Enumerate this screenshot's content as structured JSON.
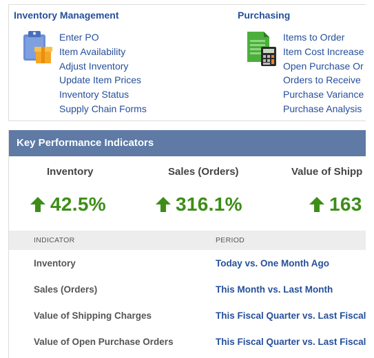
{
  "inventory_management": {
    "title": "Inventory Management",
    "icon": "clipboard-box-icon",
    "links": [
      "Enter PO",
      "Item Availability",
      "Adjust Inventory",
      "Update Item Prices",
      "Inventory Status",
      "Supply Chain Forms"
    ]
  },
  "purchasing": {
    "title": "Purchasing",
    "icon": "spreadsheet-calculator-icon",
    "links": [
      "Items to Order",
      "Item Cost Increase",
      "Open Purchase Or",
      "Orders to Receive",
      "Purchase Variance",
      "Purchase Analysis"
    ]
  },
  "kpi": {
    "header": "Key Performance Indicators",
    "cards": [
      {
        "title": "Inventory",
        "value": "42.5%",
        "trend": "up"
      },
      {
        "title": "Sales (Orders)",
        "value": "316.1%",
        "trend": "up"
      },
      {
        "title": "Value of Shipp",
        "value": "163",
        "trend": "up"
      }
    ],
    "table": {
      "col_indicator": "INDICATOR",
      "col_period": "PERIOD",
      "rows": [
        {
          "indicator": "Inventory",
          "period": "Today vs. One Month Ago"
        },
        {
          "indicator": "Sales (Orders)",
          "period": "This Month vs. Last Month"
        },
        {
          "indicator": "Value of Shipping Charges",
          "period": "This Fiscal Quarter vs. Last Fiscal"
        },
        {
          "indicator": "Value of Open Purchase Orders",
          "period": "This Fiscal Quarter vs. Last Fiscal"
        }
      ]
    }
  },
  "colors": {
    "link": "#254f9b",
    "header_bg": "#5e7aa5",
    "positive": "#3d8d18",
    "table_head_bg": "#ededed"
  }
}
